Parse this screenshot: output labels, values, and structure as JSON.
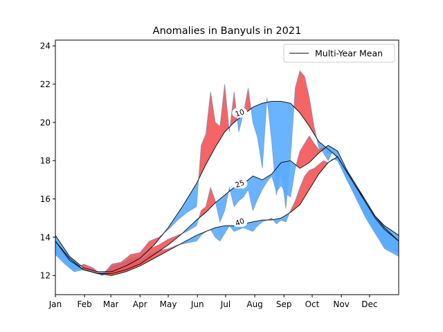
{
  "chart_data": {
    "type": "area",
    "title": "Anomalies in Banyuls in 2021",
    "xlabel": "",
    "ylabel": "",
    "xlim": [
      0,
      365
    ],
    "ylim": [
      11,
      24.3
    ],
    "x_ticks": [
      {
        "day": 0,
        "label": "Jan"
      },
      {
        "day": 31,
        "label": "Feb"
      },
      {
        "day": 59,
        "label": "Mar"
      },
      {
        "day": 90,
        "label": "Apr"
      },
      {
        "day": 120,
        "label": "May"
      },
      {
        "day": 151,
        "label": "Jun"
      },
      {
        "day": 181,
        "label": "Jul"
      },
      {
        "day": 212,
        "label": "Aug"
      },
      {
        "day": 243,
        "label": "Sep"
      },
      {
        "day": 273,
        "label": "Oct"
      },
      {
        "day": 304,
        "label": "Nov"
      },
      {
        "day": 334,
        "label": "Dec"
      }
    ],
    "y_ticks": [
      12,
      14,
      16,
      18,
      20,
      22,
      24
    ],
    "legend": {
      "position": "top-right",
      "entries": [
        "Multi-Year Mean"
      ]
    },
    "colors": {
      "above_mean": "#f45454",
      "below_mean": "#5aacff",
      "mean_line": "#000000"
    },
    "depth_labels": [
      {
        "label": "10",
        "day": 196,
        "value": 20.5
      },
      {
        "label": "25",
        "day": 196,
        "value": 16.8
      },
      {
        "label": "40",
        "day": 196,
        "value": 14.8
      }
    ],
    "series": [
      {
        "name": "10",
        "mean_x": [
          0,
          15,
          30,
          45,
          60,
          75,
          90,
          105,
          120,
          135,
          150,
          160,
          170,
          180,
          190,
          200,
          210,
          220,
          230,
          240,
          250,
          260,
          270,
          280,
          290,
          300,
          310,
          320,
          330,
          340,
          350,
          365
        ],
        "mean": [
          14.1,
          13.0,
          12.4,
          12.2,
          12.2,
          12.5,
          12.9,
          13.6,
          14.5,
          15.6,
          16.8,
          17.8,
          18.7,
          19.5,
          20.0,
          20.4,
          20.8,
          21.0,
          21.1,
          21.1,
          21.0,
          20.5,
          19.8,
          19.0,
          18.6,
          18.2,
          17.4,
          16.6,
          15.9,
          15.1,
          14.6,
          14.1
        ],
        "obs_x": [
          0,
          10,
          20,
          30,
          40,
          50,
          60,
          70,
          80,
          90,
          100,
          110,
          120,
          130,
          140,
          150,
          155,
          160,
          165,
          170,
          175,
          180,
          185,
          190,
          195,
          200,
          205,
          210,
          215,
          220,
          225,
          230,
          235,
          240,
          245,
          250,
          255,
          260,
          265,
          270,
          275,
          280,
          285,
          290,
          295,
          300,
          310,
          320,
          330,
          340,
          350,
          365
        ],
        "obs": [
          13.5,
          12.9,
          12.3,
          12.6,
          12.4,
          12.0,
          12.6,
          12.7,
          13.1,
          13.2,
          13.8,
          14.0,
          14.4,
          14.9,
          15.3,
          15.6,
          18.8,
          19.4,
          21.6,
          20.0,
          19.8,
          22.0,
          19.5,
          21.6,
          19.5,
          20.5,
          21.8,
          20.0,
          19.2,
          17.6,
          21.3,
          19.0,
          16.2,
          17.5,
          15.5,
          18.2,
          21.8,
          22.7,
          22.4,
          21.3,
          19.8,
          18.7,
          18.4,
          18.0,
          18.5,
          18.1,
          17.0,
          16.1,
          15.2,
          14.4,
          13.6,
          13.2
        ]
      },
      {
        "name": "25",
        "mean_x": [
          0,
          15,
          30,
          45,
          60,
          75,
          90,
          105,
          120,
          135,
          150,
          160,
          170,
          180,
          190,
          200,
          210,
          220,
          230,
          240,
          250,
          260,
          270,
          280,
          290,
          300,
          310,
          320,
          330,
          340,
          350,
          365
        ],
        "mean": [
          13.8,
          12.9,
          12.3,
          12.1,
          12.1,
          12.3,
          12.6,
          13.1,
          13.6,
          14.2,
          14.9,
          15.3,
          15.8,
          16.2,
          16.6,
          16.8,
          17.2,
          17.0,
          17.3,
          17.9,
          18.0,
          17.6,
          17.9,
          18.4,
          18.8,
          18.5,
          17.5,
          16.7,
          15.9,
          15.1,
          14.5,
          13.8
        ],
        "obs_x": [
          0,
          10,
          20,
          30,
          40,
          50,
          60,
          70,
          80,
          90,
          100,
          110,
          120,
          130,
          140,
          150,
          155,
          160,
          165,
          170,
          175,
          180,
          185,
          190,
          195,
          200,
          205,
          210,
          215,
          220,
          225,
          230,
          235,
          240,
          245,
          250,
          255,
          260,
          265,
          270,
          275,
          280,
          285,
          290,
          295,
          300,
          310,
          320,
          330,
          340,
          350,
          365
        ],
        "obs": [
          13.2,
          12.7,
          12.3,
          12.4,
          12.3,
          12.1,
          12.5,
          12.6,
          12.9,
          13.0,
          13.4,
          13.6,
          13.9,
          14.1,
          14.3,
          14.6,
          15.4,
          15.6,
          16.6,
          15.9,
          14.8,
          15.4,
          16.6,
          15.6,
          15.9,
          16.1,
          16.5,
          15.4,
          16.0,
          16.5,
          16.9,
          17.2,
          16.4,
          16.7,
          16.3,
          16.1,
          17.6,
          18.5,
          18.9,
          19.3,
          18.9,
          18.6,
          18.7,
          18.4,
          18.4,
          18.1,
          17.0,
          16.1,
          15.1,
          14.3,
          13.5,
          13.2
        ]
      },
      {
        "name": "40",
        "mean_x": [
          0,
          15,
          30,
          45,
          60,
          75,
          90,
          105,
          120,
          135,
          150,
          160,
          170,
          180,
          190,
          200,
          210,
          220,
          230,
          240,
          250,
          260,
          270,
          280,
          290,
          300,
          310,
          320,
          330,
          340,
          350,
          365
        ],
        "mean": [
          13.8,
          12.8,
          12.3,
          12.1,
          12.0,
          12.2,
          12.5,
          12.9,
          13.3,
          13.7,
          14.1,
          14.3,
          14.5,
          14.6,
          14.6,
          14.7,
          14.8,
          14.9,
          14.9,
          15.0,
          15.3,
          15.7,
          16.5,
          17.3,
          17.9,
          18.2,
          17.4,
          16.6,
          15.8,
          15.0,
          14.4,
          13.8
        ],
        "obs_x": [
          0,
          10,
          20,
          30,
          40,
          50,
          60,
          70,
          80,
          90,
          100,
          110,
          120,
          130,
          140,
          150,
          155,
          160,
          165,
          170,
          175,
          180,
          185,
          190,
          195,
          200,
          205,
          210,
          215,
          220,
          225,
          230,
          235,
          240,
          245,
          250,
          255,
          260,
          265,
          270,
          275,
          280,
          285,
          290,
          295,
          300,
          310,
          320,
          330,
          340,
          350,
          365
        ],
        "obs": [
          13.1,
          12.6,
          12.2,
          12.3,
          12.2,
          12.0,
          12.4,
          12.5,
          12.7,
          12.8,
          13.1,
          13.3,
          13.4,
          13.6,
          13.7,
          13.8,
          14.1,
          14.3,
          14.4,
          14.0,
          13.8,
          14.2,
          14.6,
          14.3,
          14.4,
          14.5,
          14.4,
          14.3,
          14.6,
          14.8,
          14.9,
          15.0,
          14.7,
          14.9,
          14.8,
          15.4,
          15.9,
          16.6,
          17.2,
          17.5,
          17.6,
          17.8,
          18.0,
          17.9,
          18.1,
          18.0,
          17.0,
          16.0,
          15.0,
          14.2,
          13.4,
          13.0
        ]
      }
    ]
  }
}
